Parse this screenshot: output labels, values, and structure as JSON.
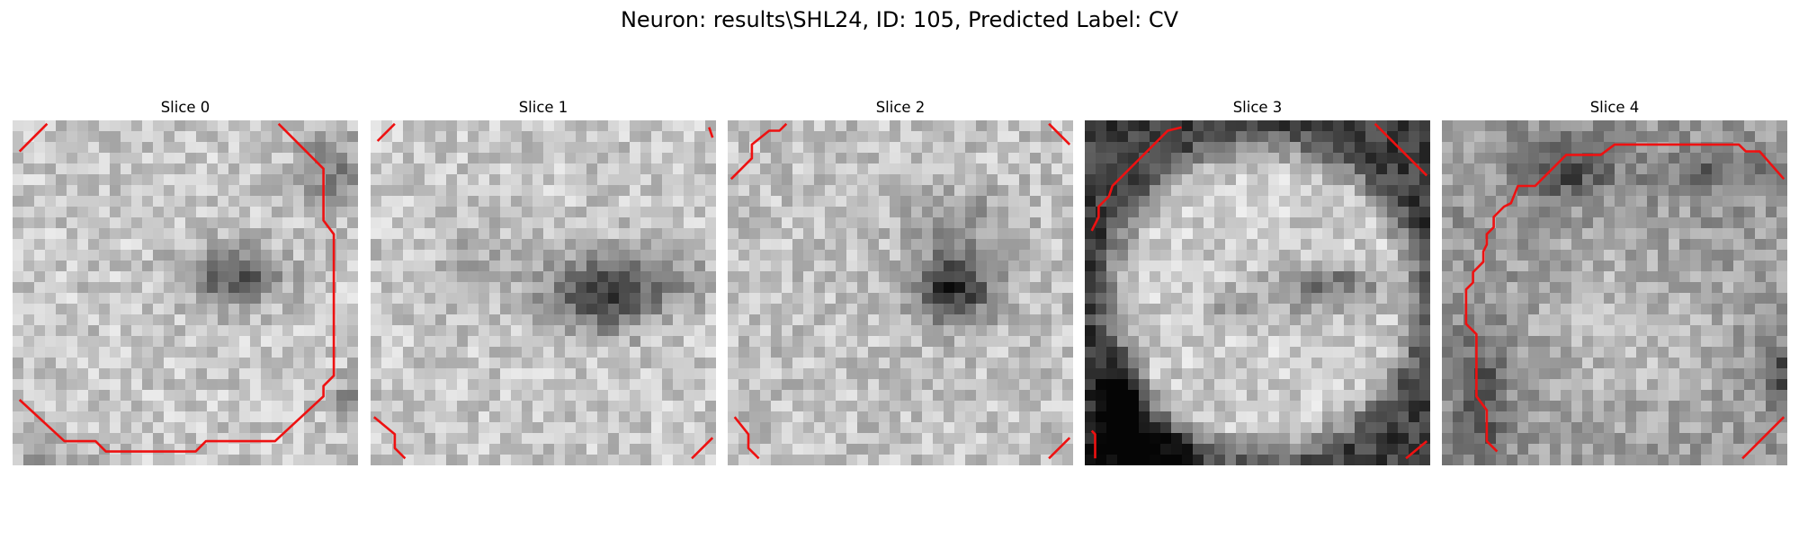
{
  "figure": {
    "title": "Neuron: results\\SHL24, ID: 105, Predicted Label: CV",
    "contour_color": "#ee1111",
    "colormap": "gray"
  },
  "slices": [
    {
      "title": "Slice 0"
    },
    {
      "title": "Slice 1"
    },
    {
      "title": "Slice 2"
    },
    {
      "title": "Slice 3"
    },
    {
      "title": "Slice 4"
    }
  ]
}
